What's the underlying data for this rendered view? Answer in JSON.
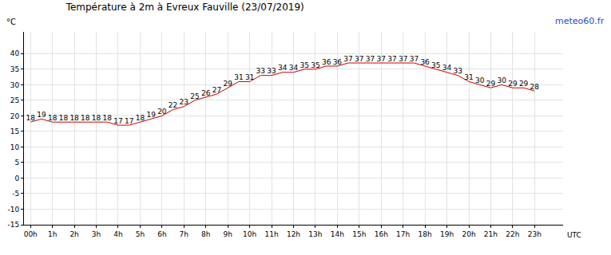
{
  "chart_data": {
    "type": "line",
    "title": "Température à 2m à Evreux Fauville (23/07/2019)",
    "ylabel": "°C",
    "xlabel": "UTC",
    "annotations": [
      "meteo60.fr"
    ],
    "x": [
      0,
      0.5,
      1,
      1.5,
      2,
      2.5,
      3,
      3.5,
      4,
      4.5,
      5,
      5.5,
      6,
      6.5,
      7,
      7.5,
      8,
      8.5,
      9,
      9.5,
      10,
      10.5,
      11,
      11.5,
      12,
      12.5,
      13,
      13.5,
      14,
      14.5,
      15,
      15.5,
      16,
      16.5,
      17,
      17.5,
      18,
      18.5,
      19,
      19.5,
      20,
      20.5,
      21,
      21.5,
      22,
      22.5,
      23
    ],
    "values": [
      18,
      19,
      18,
      18,
      18,
      18,
      18,
      18,
      17,
      17,
      18,
      19,
      20,
      22,
      23,
      25,
      26,
      27,
      29,
      31,
      31,
      33,
      33,
      34,
      34,
      35,
      35,
      36,
      36,
      37,
      37,
      37,
      37,
      37,
      37,
      37,
      36,
      35,
      34,
      33,
      31,
      30,
      29,
      30,
      29,
      29,
      28
    ],
    "color": "#cc0000",
    "data_labels": true,
    "grid": true,
    "xlim": [
      -0.3,
      24.3
    ],
    "xticks": [
      {
        "value": 0,
        "label": "00h"
      },
      {
        "value": 1,
        "label": "1h"
      },
      {
        "value": 2,
        "label": "2h"
      },
      {
        "value": 3,
        "label": "3h"
      },
      {
        "value": 4,
        "label": "4h"
      },
      {
        "value": 5,
        "label": "5h"
      },
      {
        "value": 6,
        "label": "6h"
      },
      {
        "value": 7,
        "label": "7h"
      },
      {
        "value": 8,
        "label": "8h"
      },
      {
        "value": 9,
        "label": "9h"
      },
      {
        "value": 10,
        "label": "10h"
      },
      {
        "value": 11,
        "label": "11h"
      },
      {
        "value": 12,
        "label": "12h"
      },
      {
        "value": 13,
        "label": "13h"
      },
      {
        "value": 14,
        "label": "14h"
      },
      {
        "value": 15,
        "label": "15h"
      },
      {
        "value": 16,
        "label": "16h"
      },
      {
        "value": 17,
        "label": "17h"
      },
      {
        "value": 18,
        "label": "18h"
      },
      {
        "value": 19,
        "label": "19h"
      },
      {
        "value": 20,
        "label": "20h"
      },
      {
        "value": 21,
        "label": "21h"
      },
      {
        "value": 22,
        "label": "22h"
      },
      {
        "value": 23,
        "label": "23h"
      }
    ],
    "ylim": [
      -15,
      47
    ],
    "yticks": [
      -15,
      -10,
      -5,
      0,
      5,
      10,
      15,
      20,
      25,
      30,
      35,
      40
    ]
  }
}
